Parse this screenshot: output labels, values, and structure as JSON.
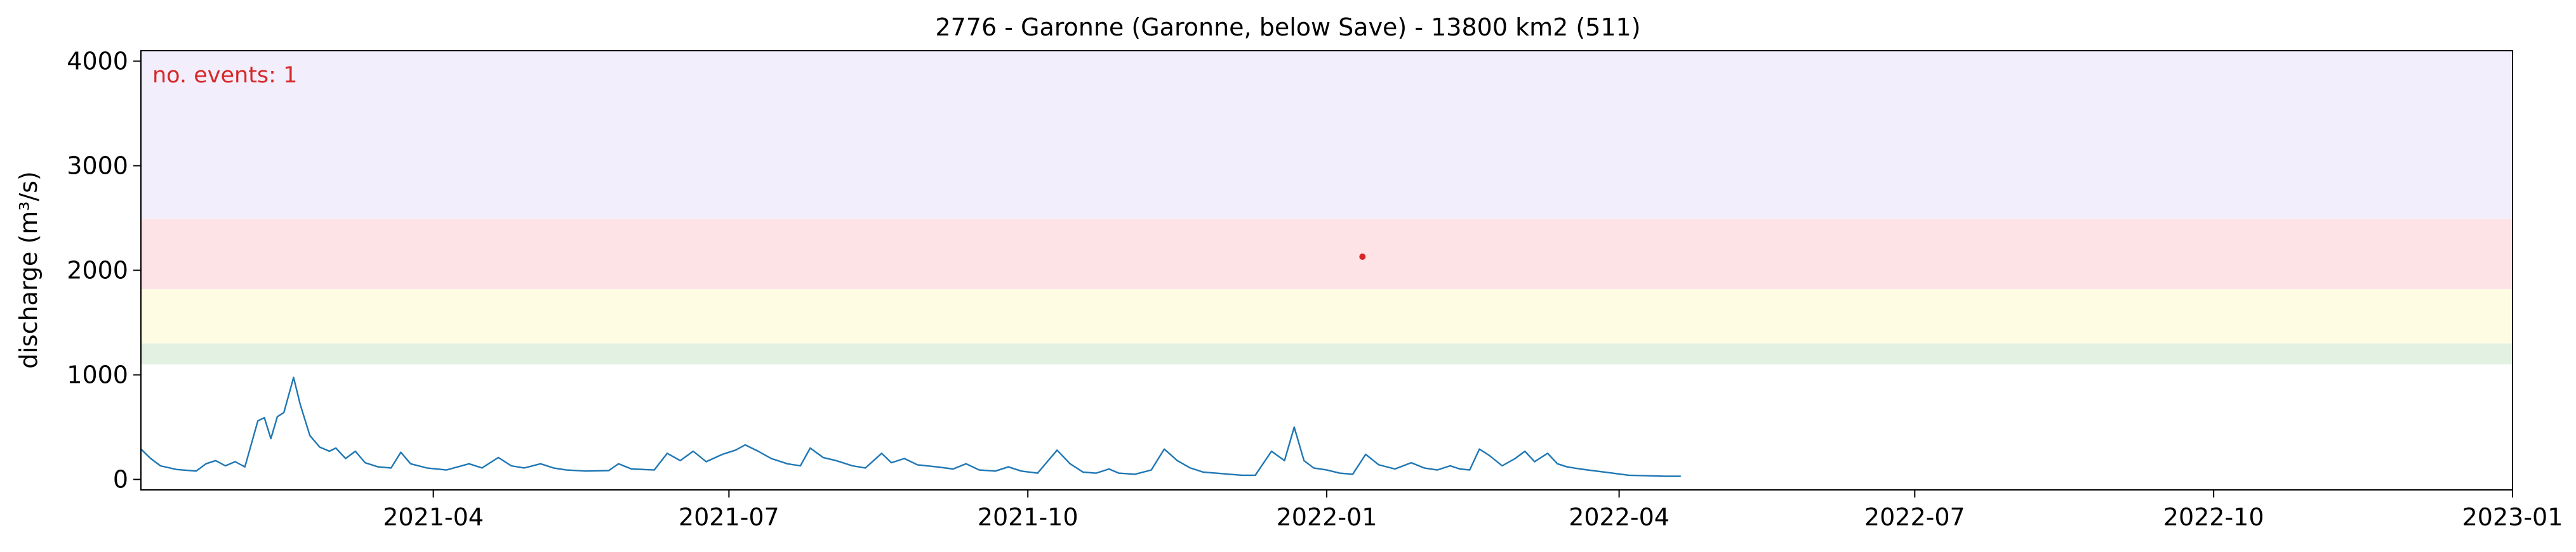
{
  "chart_data": {
    "type": "line",
    "title": "2776 - Garonne (Garonne, below Save) - 13800 km2 (511)",
    "xlabel": "",
    "ylabel": "discharge (m³/s)",
    "xlim": [
      "2021-01-01",
      "2023-01-01"
    ],
    "ylim": [
      -100,
      4100
    ],
    "grid": false,
    "legend": "none",
    "x_ticks": [
      "2021-04-01",
      "2021-07-01",
      "2021-10-01",
      "2022-01-01",
      "2022-04-01",
      "2022-07-01",
      "2022-10-01",
      "2023-01-01"
    ],
    "x_tick_labels": [
      "2021-04",
      "2021-07",
      "2021-10",
      "2022-01",
      "2022-04",
      "2022-07",
      "2022-10",
      "2023-01"
    ],
    "y_ticks": [
      0,
      1000,
      2000,
      3000,
      4000
    ],
    "y_tick_labels": [
      "0",
      "1000",
      "2000",
      "3000",
      "4000"
    ],
    "threshold_bands": [
      {
        "from": 1100,
        "to": 1300,
        "color": "#e3f1e3"
      },
      {
        "from": 1300,
        "to": 1820,
        "color": "#fefde3"
      },
      {
        "from": 1820,
        "to": 2490,
        "color": "#fde3e6"
      },
      {
        "from": 2490,
        "to": 4100,
        "color": "#f3eefb"
      }
    ],
    "line_color": "#1f77b4",
    "series": [
      {
        "points": [
          [
            "2021-01-01",
            290
          ],
          [
            "2021-01-04",
            200
          ],
          [
            "2021-01-07",
            130
          ],
          [
            "2021-01-12",
            95
          ],
          [
            "2021-01-18",
            80
          ],
          [
            "2021-01-21",
            150
          ],
          [
            "2021-01-24",
            180
          ],
          [
            "2021-01-27",
            130
          ],
          [
            "2021-01-30",
            170
          ],
          [
            "2021-02-02",
            120
          ],
          [
            "2021-02-06",
            560
          ],
          [
            "2021-02-08",
            590
          ],
          [
            "2021-02-10",
            390
          ],
          [
            "2021-02-12",
            600
          ],
          [
            "2021-02-14",
            640
          ],
          [
            "2021-02-17",
            975
          ],
          [
            "2021-02-19",
            720
          ],
          [
            "2021-02-22",
            420
          ],
          [
            "2021-02-25",
            310
          ],
          [
            "2021-02-28",
            270
          ],
          [
            "2021-03-02",
            300
          ],
          [
            "2021-03-05",
            200
          ],
          [
            "2021-03-08",
            270
          ],
          [
            "2021-03-11",
            160
          ],
          [
            "2021-03-15",
            120
          ],
          [
            "2021-03-19",
            110
          ],
          [
            "2021-03-22",
            260
          ],
          [
            "2021-03-25",
            150
          ],
          [
            "2021-03-30",
            110
          ],
          [
            "2021-04-05",
            90
          ],
          [
            "2021-04-12",
            150
          ],
          [
            "2021-04-16",
            110
          ],
          [
            "2021-04-21",
            210
          ],
          [
            "2021-04-25",
            130
          ],
          [
            "2021-04-29",
            110
          ],
          [
            "2021-05-04",
            150
          ],
          [
            "2021-05-08",
            110
          ],
          [
            "2021-05-12",
            90
          ],
          [
            "2021-05-18",
            80
          ],
          [
            "2021-05-25",
            85
          ],
          [
            "2021-05-28",
            150
          ],
          [
            "2021-06-01",
            100
          ],
          [
            "2021-06-08",
            90
          ],
          [
            "2021-06-12",
            250
          ],
          [
            "2021-06-16",
            180
          ],
          [
            "2021-06-20",
            270
          ],
          [
            "2021-06-24",
            170
          ],
          [
            "2021-06-29",
            240
          ],
          [
            "2021-07-03",
            280
          ],
          [
            "2021-07-06",
            330
          ],
          [
            "2021-07-10",
            270
          ],
          [
            "2021-07-14",
            200
          ],
          [
            "2021-07-19",
            150
          ],
          [
            "2021-07-23",
            130
          ],
          [
            "2021-07-26",
            300
          ],
          [
            "2021-07-30",
            210
          ],
          [
            "2021-08-03",
            180
          ],
          [
            "2021-08-08",
            130
          ],
          [
            "2021-08-12",
            110
          ],
          [
            "2021-08-17",
            250
          ],
          [
            "2021-08-20",
            160
          ],
          [
            "2021-08-24",
            200
          ],
          [
            "2021-08-28",
            140
          ],
          [
            "2021-09-03",
            120
          ],
          [
            "2021-09-08",
            100
          ],
          [
            "2021-09-12",
            150
          ],
          [
            "2021-09-16",
            90
          ],
          [
            "2021-09-21",
            80
          ],
          [
            "2021-09-25",
            120
          ],
          [
            "2021-09-29",
            80
          ],
          [
            "2021-10-04",
            60
          ],
          [
            "2021-10-10",
            280
          ],
          [
            "2021-10-14",
            150
          ],
          [
            "2021-10-18",
            70
          ],
          [
            "2021-10-22",
            60
          ],
          [
            "2021-10-26",
            100
          ],
          [
            "2021-10-29",
            60
          ],
          [
            "2021-11-03",
            50
          ],
          [
            "2021-11-08",
            90
          ],
          [
            "2021-11-12",
            290
          ],
          [
            "2021-11-16",
            180
          ],
          [
            "2021-11-20",
            110
          ],
          [
            "2021-11-24",
            70
          ],
          [
            "2021-11-28",
            60
          ],
          [
            "2021-12-02",
            50
          ],
          [
            "2021-12-06",
            40
          ],
          [
            "2021-12-10",
            40
          ],
          [
            "2021-12-15",
            270
          ],
          [
            "2021-12-19",
            180
          ],
          [
            "2021-12-22",
            500
          ],
          [
            "2021-12-25",
            180
          ],
          [
            "2021-12-28",
            110
          ],
          [
            "2022-01-01",
            90
          ],
          [
            "2022-01-05",
            60
          ],
          [
            "2022-01-09",
            50
          ],
          [
            "2022-01-13",
            240
          ],
          [
            "2022-01-17",
            140
          ],
          [
            "2022-01-22",
            100
          ],
          [
            "2022-01-27",
            160
          ],
          [
            "2022-01-31",
            110
          ],
          [
            "2022-02-04",
            90
          ],
          [
            "2022-02-08",
            130
          ],
          [
            "2022-02-11",
            100
          ],
          [
            "2022-02-14",
            90
          ],
          [
            "2022-02-17",
            290
          ],
          [
            "2022-02-20",
            230
          ],
          [
            "2022-02-24",
            130
          ],
          [
            "2022-02-28",
            200
          ],
          [
            "2022-03-03",
            270
          ],
          [
            "2022-03-06",
            170
          ],
          [
            "2022-03-10",
            250
          ],
          [
            "2022-03-13",
            150
          ],
          [
            "2022-03-16",
            120
          ],
          [
            "2022-03-20",
            100
          ],
          [
            "2022-03-25",
            80
          ],
          [
            "2022-03-30",
            60
          ],
          [
            "2022-04-04",
            40
          ],
          [
            "2022-04-10",
            35
          ],
          [
            "2022-04-15",
            30
          ],
          [
            "2022-04-20",
            30
          ]
        ]
      }
    ],
    "event_marker": {
      "x": "2022-01-12",
      "y": 2130,
      "color": "#d62728"
    },
    "annotation": {
      "text": "no. events: 1",
      "color": "#d62728"
    }
  }
}
